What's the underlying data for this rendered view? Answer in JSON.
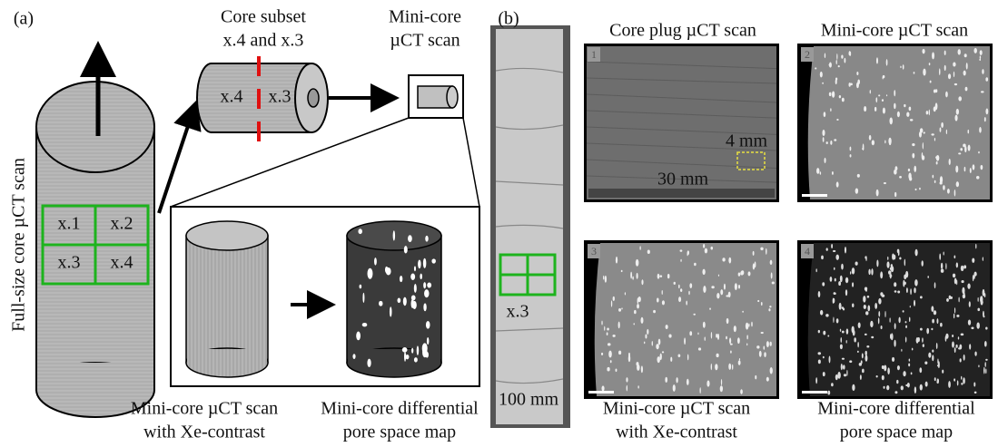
{
  "panel_a": {
    "label": "(a)",
    "full_core_label": "Full-size core µCT scan",
    "grid_labels": [
      "x.1",
      "x.2",
      "x.3",
      "x.4"
    ],
    "subset_title": [
      "Core subset",
      "x.4 and x.3"
    ],
    "subset_labels": [
      "x.4",
      "x.3"
    ],
    "minicore_title": [
      "Mini-core",
      "µCT scan"
    ],
    "captions": [
      [
        "Mini-core µCT scan",
        "with Xe-contrast"
      ],
      [
        "Mini-core differential",
        "pore space map"
      ]
    ]
  },
  "panel_b": {
    "label": "(b)",
    "column_label": "x.3",
    "scale_label": "100 mm",
    "headers": [
      "Core plug µCT scan",
      "Mini-core µCT scan"
    ],
    "image_numbers": [
      "1",
      "2",
      "3",
      "4"
    ],
    "annotations": [
      "4 mm",
      "30 mm"
    ],
    "captions": [
      [
        "Mini-core µCT scan",
        "with Xe-contrast"
      ],
      [
        "Mini-core differential",
        "pore space map"
      ]
    ]
  }
}
